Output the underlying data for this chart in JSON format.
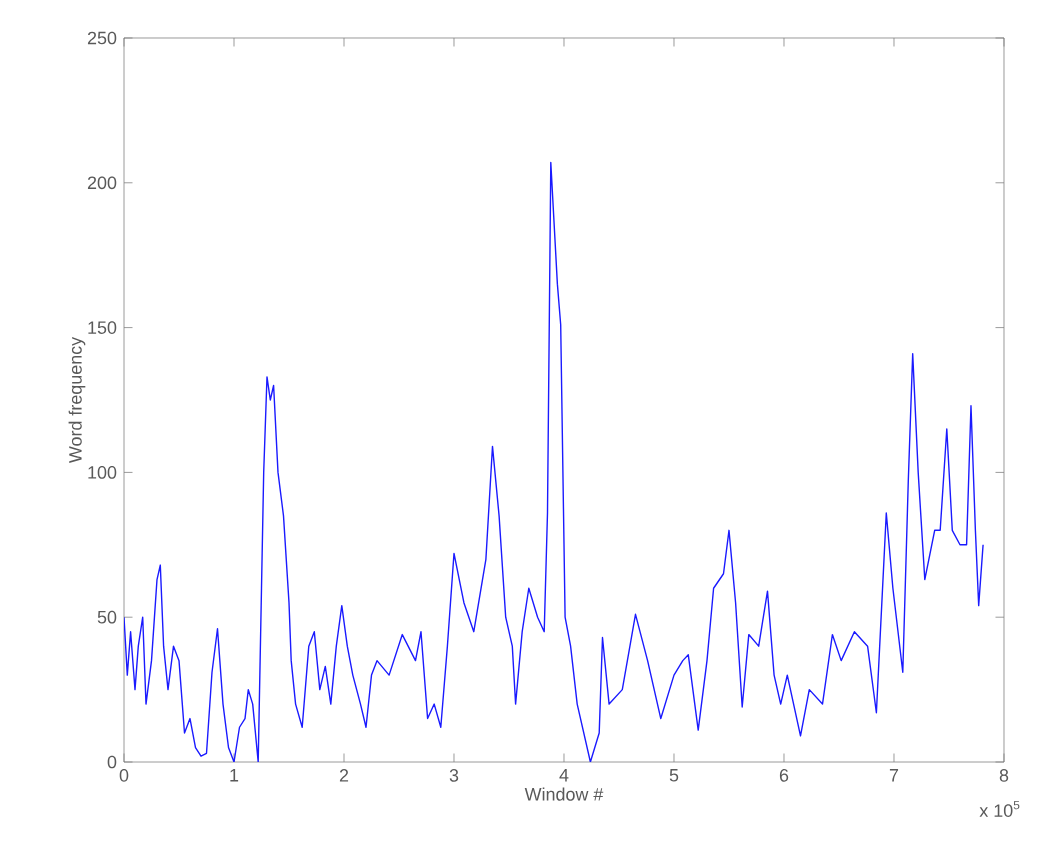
{
  "chart_data": {
    "type": "line",
    "xlabel": "Window #",
    "ylabel": "Word frequency",
    "annotations": [
      "x 10$^{5}$"
    ],
    "xlim": [
      0,
      8
    ],
    "xticks": [
      0,
      1,
      2,
      3,
      4,
      5,
      6,
      7,
      8
    ],
    "ylim": [
      0,
      250
    ],
    "yticks": [
      0,
      50,
      100,
      150,
      200,
      250
    ],
    "marker": "none",
    "line_style": "solid",
    "series": [
      {
        "color": "#1a1aff",
        "x": [
          0,
          0.03,
          0.06,
          0.1,
          0.13,
          0.17,
          0.2,
          0.25,
          0.3,
          0.33,
          0.36,
          0.4,
          0.45,
          0.5,
          0.55,
          0.6,
          0.65,
          0.7,
          0.75,
          0.8,
          0.85,
          0.9,
          0.95,
          1.0,
          1.05,
          1.1,
          1.13,
          1.17,
          1.22,
          1.25,
          1.27,
          1.3,
          1.33,
          1.36,
          1.4,
          1.45,
          1.5,
          1.52,
          1.56,
          1.62,
          1.68,
          1.73,
          1.78,
          1.83,
          1.88,
          1.93,
          1.98,
          2.03,
          2.08,
          2.15,
          2.2,
          2.25,
          2.3,
          2.41,
          2.53,
          2.65,
          2.7,
          2.76,
          2.82,
          2.88,
          2.94,
          3.0,
          3.09,
          3.18,
          3.29,
          3.35,
          3.41,
          3.47,
          3.53,
          3.56,
          3.62,
          3.68,
          3.76,
          3.82,
          3.85,
          3.88,
          3.94,
          3.97,
          4.01,
          4.06,
          4.12,
          4.24,
          4.32,
          4.35,
          4.41,
          4.53,
          4.65,
          4.76,
          4.88,
          5.0,
          5.08,
          5.13,
          5.22,
          5.3,
          5.36,
          5.45,
          5.5,
          5.56,
          5.62,
          5.68,
          5.77,
          5.85,
          5.91,
          5.97,
          6.03,
          6.15,
          6.23,
          6.35,
          6.44,
          6.52,
          6.64,
          6.76,
          6.84,
          6.93,
          6.99,
          7.08,
          7.13,
          7.17,
          7.22,
          7.28,
          7.37,
          7.42,
          7.48,
          7.53,
          7.6,
          7.66,
          7.7,
          7.74,
          7.77,
          7.81
        ],
        "values": [
          50,
          30,
          45,
          25,
          40,
          50,
          20,
          35,
          63,
          68,
          40,
          25,
          40,
          35,
          10,
          15,
          5,
          2,
          3,
          31,
          46,
          20,
          5,
          0,
          12,
          15,
          25,
          20,
          0,
          60,
          100,
          133,
          125,
          130,
          100,
          85,
          55,
          35,
          20,
          12,
          40,
          45,
          25,
          33,
          20,
          40,
          54,
          40,
          30,
          20,
          12,
          30,
          35,
          30,
          44,
          35,
          45,
          15,
          20,
          12,
          40,
          72,
          55,
          45,
          70,
          109,
          85,
          50,
          40,
          20,
          45,
          60,
          50,
          45,
          86,
          207,
          165,
          151,
          50,
          40,
          20,
          0,
          10,
          43,
          20,
          25,
          51,
          35,
          15,
          30,
          35,
          37,
          11,
          35,
          60,
          65,
          80,
          55,
          19,
          44,
          40,
          59,
          30,
          20,
          30,
          9,
          25,
          20,
          44,
          35,
          45,
          40,
          17,
          86,
          60,
          31,
          97,
          141,
          100,
          63,
          80,
          80,
          115,
          80,
          75,
          75,
          123,
          80,
          54,
          75
        ]
      }
    ]
  }
}
